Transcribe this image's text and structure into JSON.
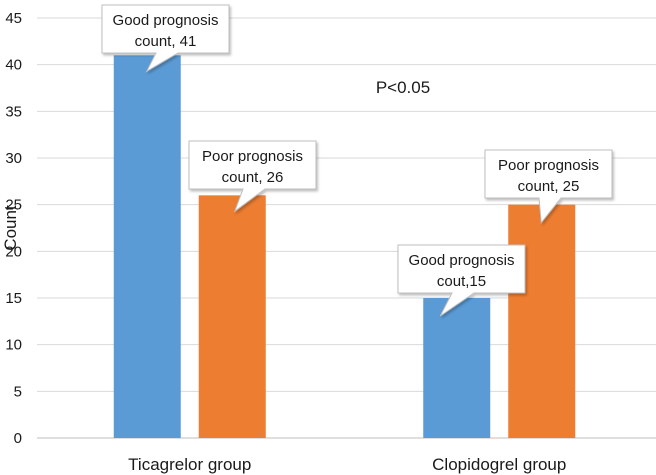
{
  "chart_data": {
    "type": "bar",
    "title": "",
    "xlabel": "",
    "ylabel": "Count",
    "ylim": [
      0,
      45
    ],
    "yticks": [
      0,
      5,
      10,
      15,
      20,
      25,
      30,
      35,
      40,
      45
    ],
    "grid": true,
    "categories": [
      "Ticagrelor group",
      "Clopidogrel group"
    ],
    "series": [
      {
        "name": "Good prognosis",
        "color": "#5b9bd5",
        "values": [
          41,
          15
        ]
      },
      {
        "name": "Poor prognosis",
        "color": "#ed7d31",
        "values": [
          26,
          25
        ]
      }
    ],
    "data_labels": [
      [
        [
          "Good prognosis",
          "count, 41"
        ],
        [
          "Good prognosis",
          "cout,15"
        ]
      ],
      [
        [
          "Poor prognosis",
          "count, 26"
        ],
        [
          "Poor prognosis",
          "count, 25"
        ]
      ]
    ],
    "annotations": [
      "P<0.05"
    ]
  }
}
